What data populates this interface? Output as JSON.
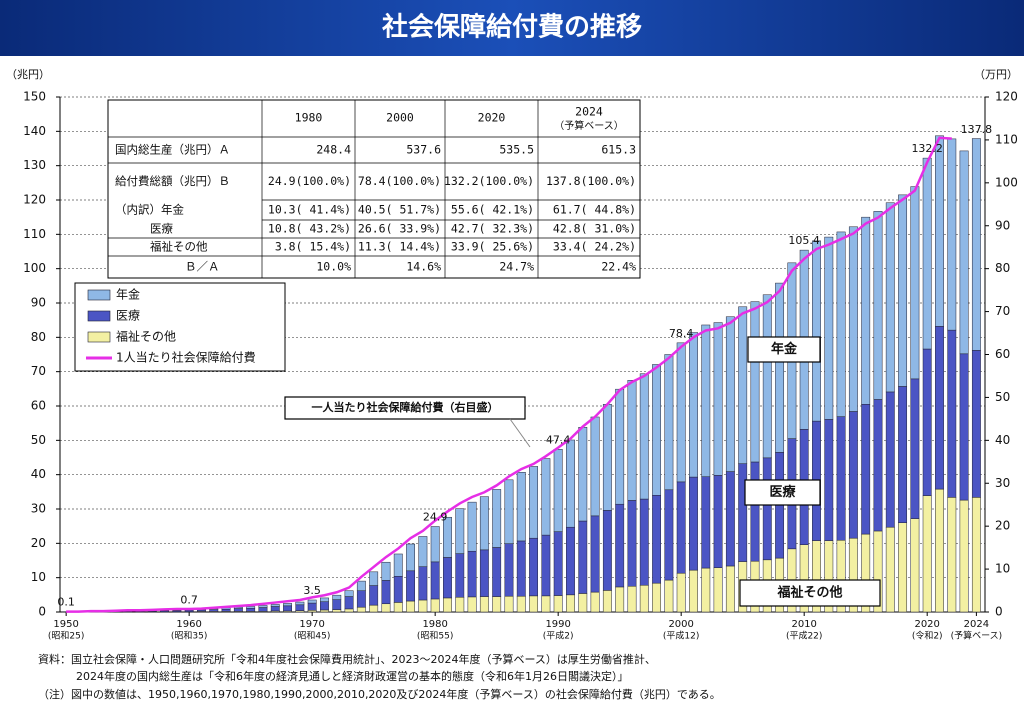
{
  "chart_data": {
    "type": "bar",
    "title": "社会保障給付費の推移",
    "y_label": "（兆円）",
    "y2_label": "（万円）",
    "x": [
      1950,
      1951,
      1952,
      1953,
      1954,
      1955,
      1956,
      1957,
      1958,
      1959,
      1960,
      1961,
      1962,
      1963,
      1964,
      1965,
      1966,
      1967,
      1968,
      1969,
      1970,
      1971,
      1972,
      1973,
      1974,
      1975,
      1976,
      1977,
      1978,
      1979,
      1980,
      1981,
      1982,
      1983,
      1984,
      1985,
      1986,
      1987,
      1988,
      1989,
      1990,
      1991,
      1992,
      1993,
      1994,
      1995,
      1996,
      1997,
      1998,
      1999,
      2000,
      2001,
      2002,
      2003,
      2004,
      2005,
      2006,
      2007,
      2008,
      2009,
      2010,
      2011,
      2012,
      2013,
      2014,
      2015,
      2016,
      2017,
      2018,
      2019,
      2020,
      2021,
      2022,
      2023,
      2024
    ],
    "xlim": [
      1949.5,
      2024.7
    ],
    "xticks": [
      1950,
      1960,
      1970,
      1980,
      1990,
      2000,
      2010,
      2020,
      2024
    ],
    "xtick_eras": [
      "(昭和25)",
      "(昭和35)",
      "(昭和45)",
      "(昭和55)",
      "(平成2)",
      "(平成12)",
      "(平成22)",
      "(令和2)",
      "(予算ベース)"
    ],
    "ylim": [
      0,
      150
    ],
    "yticks": [
      0,
      10,
      20,
      30,
      40,
      50,
      60,
      70,
      80,
      90,
      100,
      110,
      120,
      130,
      140,
      150
    ],
    "y2lim": [
      0,
      120
    ],
    "y2ticks": [
      0,
      10,
      20,
      30,
      40,
      50,
      60,
      70,
      80,
      90,
      100,
      110,
      120
    ],
    "grid": true,
    "series": [
      {
        "name": "年金",
        "color": "#8fb8e6",
        "values": [
          0.0,
          0.0,
          0.0,
          0.0,
          0.0,
          0.1,
          0.1,
          0.1,
          0.1,
          0.2,
          0.2,
          0.2,
          0.3,
          0.4,
          0.4,
          0.5,
          0.6,
          0.6,
          0.7,
          0.8,
          0.9,
          1.1,
          1.3,
          1.7,
          2.8,
          4.0,
          5.3,
          6.5,
          7.8,
          8.8,
          10.3,
          11.7,
          13.1,
          14.3,
          15.5,
          16.9,
          18.6,
          20.0,
          20.9,
          22.3,
          24.0,
          25.4,
          27.3,
          28.8,
          30.9,
          33.5,
          35.0,
          36.5,
          38.1,
          39.4,
          40.5,
          42.1,
          44.2,
          44.5,
          45.1,
          45.7,
          46.7,
          47.5,
          49.3,
          51.2,
          52.2,
          52.5,
          53.1,
          53.8,
          53.8,
          54.5,
          54.8,
          55.1,
          55.8,
          56.0,
          55.6,
          55.5,
          55.7,
          59.1,
          61.7
        ]
      },
      {
        "name": "医療",
        "color": "#4b55c4",
        "values": [
          0.1,
          0.1,
          0.1,
          0.1,
          0.2,
          0.2,
          0.2,
          0.2,
          0.3,
          0.3,
          0.4,
          0.4,
          0.5,
          0.6,
          0.8,
          0.9,
          1.1,
          1.3,
          1.5,
          1.7,
          2.1,
          2.4,
          2.9,
          3.6,
          4.8,
          5.7,
          6.8,
          7.6,
          8.8,
          9.7,
          10.8,
          11.8,
          12.7,
          13.3,
          13.6,
          14.3,
          15.3,
          16.1,
          16.8,
          17.7,
          18.6,
          19.7,
          21.1,
          22.2,
          23.3,
          24.1,
          25.0,
          25.1,
          25.6,
          26.3,
          26.6,
          27.1,
          26.6,
          26.9,
          27.5,
          28.5,
          28.9,
          29.7,
          30.8,
          32.1,
          33.6,
          34.8,
          35.3,
          36.0,
          36.9,
          37.8,
          38.3,
          39.4,
          39.7,
          40.7,
          42.7,
          47.4,
          48.7,
          42.6,
          42.8
        ]
      },
      {
        "name": "福祉その他",
        "color": "#f3f0a2",
        "values": [
          0.0,
          0.0,
          0.1,
          0.1,
          0.1,
          0.1,
          0.1,
          0.1,
          0.1,
          0.1,
          0.1,
          0.2,
          0.2,
          0.2,
          0.2,
          0.2,
          0.2,
          0.3,
          0.3,
          0.4,
          0.5,
          0.6,
          0.7,
          0.9,
          1.4,
          2.0,
          2.4,
          2.8,
          3.2,
          3.5,
          3.8,
          4.1,
          4.3,
          4.4,
          4.5,
          4.5,
          4.6,
          4.6,
          4.7,
          4.7,
          4.8,
          5.0,
          5.4,
          5.8,
          6.3,
          7.3,
          7.5,
          7.8,
          8.4,
          9.3,
          11.3,
          12.2,
          12.8,
          12.9,
          13.4,
          14.7,
          14.8,
          15.2,
          15.7,
          18.4,
          19.6,
          20.8,
          20.8,
          20.9,
          21.5,
          22.7,
          23.6,
          24.7,
          26.0,
          27.2,
          33.9,
          35.8,
          33.4,
          32.6,
          33.4
        ]
      },
      {
        "name": "1人当たり社会保障給付費",
        "color": "#e62ee6",
        "axis": "y2",
        "type": "line",
        "values": [
          0.1,
          0.1,
          0.2,
          0.2,
          0.3,
          0.4,
          0.4,
          0.5,
          0.6,
          0.7,
          0.7,
          0.8,
          1.0,
          1.2,
          1.4,
          1.6,
          1.9,
          2.2,
          2.5,
          2.8,
          3.4,
          3.9,
          4.6,
          5.7,
          8.2,
          10.5,
          12.8,
          14.8,
          17.2,
          18.9,
          21.3,
          23.4,
          25.3,
          26.8,
          27.9,
          29.5,
          31.6,
          33.3,
          34.5,
          36.3,
          38.3,
          40.4,
          43.2,
          45.5,
          48.4,
          51.7,
          53.6,
          55.0,
          57.0,
          59.2,
          61.8,
          64.0,
          65.6,
          66.1,
          67.4,
          69.6,
          70.7,
          72.2,
          74.8,
          79.5,
          82.3,
          84.6,
          85.6,
          86.9,
          88.2,
          90.5,
          91.9,
          94.1,
          96.1,
          98.2,
          104.8,
          110.5,
          110.3,
          null,
          null
        ]
      }
    ],
    "total_labels": [
      {
        "x": 1950,
        "value": 0.1
      },
      {
        "x": 1960,
        "value": 0.7
      },
      {
        "x": 1970,
        "value": 3.5
      },
      {
        "x": 1980,
        "value": 24.9
      },
      {
        "x": 1990,
        "value": 47.4
      },
      {
        "x": 2000,
        "value": 78.4
      },
      {
        "x": 2010,
        "value": 105.4
      },
      {
        "x": 2020,
        "value": 132.2
      },
      {
        "x": 2024,
        "value": 137.8
      }
    ],
    "annotations": [
      "年金",
      "医療",
      "福祉その他",
      "一人当たり社会保障給付費（右目盛）"
    ],
    "legend": "upper left",
    "table": {
      "header": [
        "1980",
        "2000",
        "2020",
        "2024"
      ],
      "header_note": "（予算ベース）",
      "rows": [
        [
          "国内総生産（兆円）Ａ",
          "248.4",
          "537.6",
          "535.5",
          "615.3"
        ],
        [
          "給付費総額（兆円）Ｂ",
          "24.9(100.0%)",
          "78.4(100.0%)",
          "132.2(100.0%)",
          "137.8(100.0%)"
        ],
        [
          "（内訳）年金",
          "10.3( 41.4%)",
          "40.5( 51.7%)",
          "55.6( 42.1%)",
          "61.7( 44.8%)"
        ],
        [
          "医療",
          "10.8( 43.2%)",
          "26.6( 33.9%)",
          "42.7( 32.3%)",
          "42.8( 31.0%)"
        ],
        [
          "福祉その他",
          "3.8( 15.4%)",
          "11.3( 14.4%)",
          "33.9( 25.6%)",
          "33.4( 24.2%)"
        ],
        [
          "Ｂ／Ａ",
          "10.0%",
          "14.6%",
          "24.7%",
          "22.4%"
        ]
      ]
    },
    "notes": [
      "資料：国立社会保障・人口問題研究所「令和4年度社会保障費用統計」、2023～2024年度（予算ベース）は厚生労働省推計、",
      "2024年度の国内総生産は「令和6年度の経済見通しと経済財政運営の基本的態度（令和6年1月26日閣議決定）」",
      "（注）図中の数値は、1950,1960,1970,1980,1990,2000,2010,2020及び2024年度（予算ベース）の社会保障給付費（兆円）である。"
    ]
  }
}
